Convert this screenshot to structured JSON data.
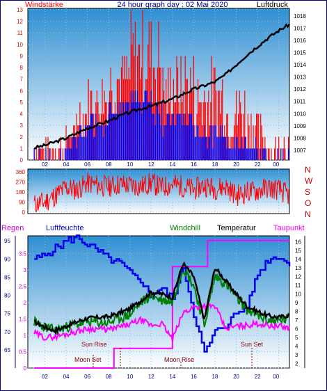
{
  "colors": {
    "red": "#ff0000",
    "blue": "#0000ee",
    "navy": "#000080",
    "black": "#000000",
    "green": "#008000",
    "magenta": "#ff00ff",
    "darkred": "#cc0000",
    "maroon": "#8b0000",
    "sky_top": "#2f8fd2",
    "sky_bottom": "#ffffff",
    "frame": "#000080"
  },
  "top_panel": {
    "title": "24 hour graph day : 02 Mai 2020",
    "left_label": "Windstärke",
    "right_label": "Luftdruck"
  },
  "middle_panel": {
    "compass_labels": [
      "N",
      "W",
      "S",
      "O",
      "N"
    ]
  },
  "bottom_panel": {
    "labels": {
      "regen": "Regen",
      "luftfeuchte": "Luftfeuchte",
      "windchill": "Windchill",
      "temperatur": "Temperatur",
      "taupunkt": "Taupunkt"
    },
    "annotations": {
      "moon_set": "Moon Set",
      "sun_rise": "Sun Rise",
      "moon_rise": "Moon Rise",
      "sun_set": "Sun Set"
    }
  },
  "chart_data": [
    {
      "id": "wind_pressure",
      "type": "line",
      "title": "24 hour graph day : 02 Mai 2020",
      "xlabel": "",
      "ylabel": "Windstärke",
      "y2label": "Luftdruck",
      "x_ticks": [
        "02",
        "04",
        "06",
        "08",
        "10",
        "12",
        "14",
        "16",
        "18",
        "20",
        "22",
        "00"
      ],
      "y_ticks": [
        0,
        1,
        2,
        3,
        4,
        5,
        6,
        7,
        8,
        9,
        10,
        11,
        12,
        13
      ],
      "y2_ticks": [
        1007,
        1008,
        1009,
        1010,
        1011,
        1012,
        1013,
        1014,
        1015,
        1016,
        1017,
        1018
      ],
      "ylim": [
        0,
        13
      ],
      "y2lim": [
        1006.2,
        1018.5
      ],
      "series": [
        {
          "name": "Windstärke",
          "type": "bar",
          "x": [
            0,
            1,
            2,
            3,
            4,
            5,
            6,
            7,
            8,
            9,
            10,
            11,
            12,
            13,
            14,
            15,
            16,
            17,
            18,
            19,
            20,
            21,
            22,
            23
          ],
          "max": [
            2,
            2,
            2,
            3,
            6,
            7,
            8,
            10,
            10,
            13,
            13,
            13,
            9,
            9,
            10,
            8,
            9,
            9,
            7,
            7,
            5,
            4,
            2,
            3
          ],
          "mean": [
            0,
            0,
            0,
            1,
            2,
            3,
            3,
            4,
            4,
            5,
            5,
            4,
            3,
            3,
            3,
            2,
            2,
            2,
            1,
            1,
            1,
            0,
            0,
            0
          ]
        },
        {
          "name": "Luftdruck",
          "type": "line",
          "x": [
            0,
            1,
            2,
            3,
            4,
            5,
            6,
            7,
            8,
            9,
            10,
            11,
            12,
            13,
            14,
            15,
            16,
            17,
            18,
            19,
            20,
            21,
            22,
            23,
            24
          ],
          "values": [
            1007.2,
            1007.4,
            1007.7,
            1008.0,
            1008.4,
            1008.8,
            1009.1,
            1009.4,
            1009.8,
            1010.1,
            1010.4,
            1010.6,
            1010.9,
            1011.2,
            1011.6,
            1012.0,
            1012.3,
            1012.6,
            1013.2,
            1014.0,
            1014.8,
            1015.5,
            1016.2,
            1016.8,
            1017.3
          ]
        }
      ]
    },
    {
      "id": "wind_direction",
      "type": "line",
      "x_ticks": [],
      "y_ticks": [
        0,
        90,
        180,
        270,
        360
      ],
      "ylim": [
        0,
        360
      ],
      "series": [
        {
          "name": "Windrichtung",
          "x": [
            0,
            1,
            2,
            3,
            4,
            5,
            6,
            7,
            8,
            9,
            10,
            11,
            12,
            13,
            14,
            15,
            16,
            17,
            18,
            19,
            20,
            21,
            22,
            23,
            24
          ],
          "values": [
            70,
            90,
            150,
            220,
            200,
            260,
            240,
            230,
            250,
            240,
            230,
            260,
            220,
            250,
            230,
            200,
            240,
            210,
            230,
            150,
            180,
            190,
            220,
            200,
            150
          ]
        }
      ]
    },
    {
      "id": "climate",
      "type": "line",
      "x_ticks": [
        "02",
        "04",
        "06",
        "08",
        "10",
        "12",
        "14",
        "16",
        "18",
        "20",
        "22",
        "00"
      ],
      "y_ticks_regen": [
        0,
        0.5,
        1,
        1.5,
        2,
        2.5,
        3,
        3.5
      ],
      "ylim_regen": [
        0,
        4
      ],
      "y_ticks_luftfeuchte": [
        65,
        70,
        75,
        80,
        85,
        90,
        95
      ],
      "ylim_luftfeuchte": [
        60,
        96
      ],
      "y_ticks_temp": [
        2,
        3,
        4,
        5,
        6,
        7,
        8,
        9,
        10,
        11,
        12,
        13,
        14,
        15,
        16
      ],
      "ylim_temp": [
        1.5,
        16.5
      ],
      "series": [
        {
          "name": "Luftfeuchte",
          "axis": "luftfeuchte",
          "x": [
            0,
            1,
            2,
            3,
            4,
            5,
            6,
            7,
            8,
            9,
            10,
            11,
            12,
            13,
            14,
            15,
            16,
            17,
            18,
            19,
            20,
            21,
            22,
            23,
            24
          ],
          "values": [
            90,
            91,
            93,
            95,
            96,
            94,
            92,
            90,
            89,
            86,
            84,
            80,
            82,
            79,
            88,
            75,
            64,
            70,
            72,
            75,
            77,
            86,
            90,
            91,
            88
          ]
        },
        {
          "name": "Temperatur",
          "axis": "temp",
          "x": [
            0,
            1,
            2,
            3,
            4,
            5,
            6,
            7,
            8,
            9,
            10,
            11,
            12,
            13,
            14,
            15,
            16,
            17,
            18,
            19,
            20,
            21,
            22,
            23,
            24
          ],
          "values": [
            6.8,
            6.2,
            5.8,
            6.3,
            6.8,
            7.2,
            7.3,
            7.4,
            7.8,
            8.3,
            9.2,
            10.2,
            10.0,
            9.6,
            13.5,
            12.0,
            7.0,
            13.0,
            11.5,
            10.0,
            8.6,
            8.0,
            7.5,
            7.3,
            7.6
          ]
        },
        {
          "name": "Windchill",
          "axis": "temp",
          "x": [
            0,
            1,
            2,
            3,
            4,
            5,
            6,
            7,
            8,
            9,
            10,
            11,
            12,
            13,
            14,
            15,
            16,
            17,
            18,
            19,
            20,
            21,
            22,
            23,
            24
          ],
          "values": [
            6.8,
            6.2,
            5.8,
            6.2,
            6.5,
            6.8,
            6.7,
            6.7,
            7.2,
            7.6,
            9.0,
            9.8,
            9.3,
            9.1,
            13.0,
            11.0,
            6.4,
            12.0,
            11.2,
            9.6,
            8.2,
            7.5,
            7.0,
            6.9,
            7.2
          ]
        },
        {
          "name": "Taupunkt",
          "axis": "temp",
          "x": [
            0,
            1,
            2,
            3,
            4,
            5,
            6,
            7,
            8,
            9,
            10,
            11,
            12,
            13,
            14,
            15,
            16,
            17,
            18,
            19,
            20,
            21,
            22,
            23,
            24
          ],
          "values": [
            5.5,
            5.0,
            5.1,
            5.4,
            5.7,
            6.0,
            6.0,
            5.9,
            6.2,
            6.5,
            7.0,
            6.4,
            6.6,
            4.8,
            7.8,
            8.5,
            8.6,
            8.6,
            6.0,
            6.3,
            6.4,
            6.6,
            6.4,
            6.3,
            6.1
          ]
        },
        {
          "name": "Regen",
          "axis": "regen",
          "x": [
            0,
            7.4,
            7.5,
            12.9,
            13.0,
            16.2,
            16.3,
            24
          ],
          "values": [
            0,
            0,
            0.6,
            0.6,
            3.1,
            3.1,
            3.9,
            3.9
          ]
        }
      ]
    }
  ]
}
